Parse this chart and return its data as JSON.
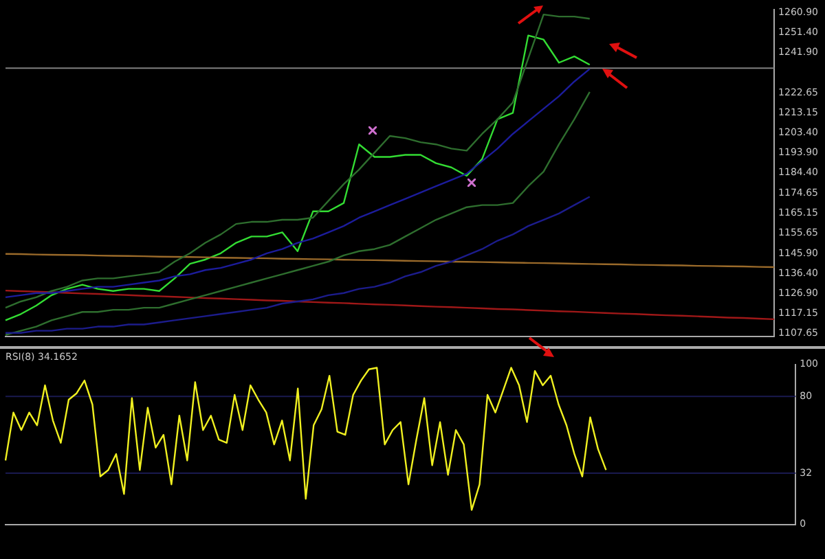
{
  "chart_data": [
    {
      "type": "line",
      "tick_labels": "y",
      "grid": false,
      "legend": false,
      "marker": "none",
      "ylim": [
        1106.4,
        1262.2
      ],
      "categories": [
        null,
        null,
        null,
        null,
        null,
        null,
        null,
        null,
        null,
        null,
        null,
        null,
        null,
        null,
        null,
        null,
        null,
        null,
        null,
        null,
        null,
        null,
        null,
        null,
        null,
        null,
        null,
        null,
        null,
        null,
        null,
        null,
        null,
        null,
        null,
        null,
        null,
        null,
        null,
        null,
        null,
        null,
        null,
        null,
        null,
        null,
        null,
        null,
        null,
        null,
        null
      ],
      "yticks": [
        {
          "value": 1107.65,
          "label": "1107.65"
        },
        {
          "value": 1117.15,
          "label": "1117.15"
        },
        {
          "value": 1126.9,
          "label": "1126.90"
        },
        {
          "value": 1136.4,
          "label": "1136.40"
        },
        {
          "value": 1145.9,
          "label": "1145.90"
        },
        {
          "value": 1155.65,
          "label": "1155.65"
        },
        {
          "value": 1165.15,
          "label": "1165.15"
        },
        {
          "value": 1174.65,
          "label": "1174.65"
        },
        {
          "value": 1184.4,
          "label": "1184.40"
        },
        {
          "value": 1193.9,
          "label": "1193.90"
        },
        {
          "value": 1203.4,
          "label": "1203.40"
        },
        {
          "value": 1213.15,
          "label": "1213.15"
        },
        {
          "value": 1222.65,
          "label": "1222.65"
        },
        {
          "value": 1241.9,
          "label": "1241.90"
        },
        {
          "value": 1251.4,
          "label": "1251.40"
        },
        {
          "value": 1260.9,
          "label": "1260.90"
        }
      ],
      "ref_lines": [
        {
          "axis": "y",
          "value": 1234.4,
          "color": "#808080"
        }
      ],
      "series": [
        {
          "color": "#1c1c8c",
          "values": [
            1108,
            1108,
            1109,
            1109,
            1110,
            1110,
            1111,
            1111,
            1112,
            1112,
            1113,
            1114,
            1115,
            1116,
            1117,
            1118,
            1119,
            1120,
            1122,
            1123,
            1124,
            1126,
            1127,
            1129,
            1130,
            1132,
            1135,
            1137,
            1140,
            1142,
            1145,
            1148,
            1152,
            1155,
            1159,
            1162,
            1165,
            1169,
            1173,
            null,
            null,
            null,
            null,
            null,
            null,
            null,
            null,
            null,
            null,
            null,
            null
          ]
        },
        {
          "color": "#1c1c9c",
          "values": [
            1125,
            1126,
            1127,
            1127,
            1128,
            1129,
            1130,
            1130,
            1131,
            1132,
            1133,
            1135,
            1136,
            1138,
            1139,
            1141,
            1143,
            1146,
            1148,
            1151,
            1153,
            1156,
            1159,
            1163,
            1166,
            1169,
            1172,
            1175,
            1178,
            1181,
            1184,
            1190,
            1196,
            1203,
            1209,
            1215,
            1221,
            1228,
            1234,
            null,
            null,
            null,
            null,
            null,
            null,
            null,
            null,
            null,
            null,
            null,
            null
          ]
        },
        {
          "color": "#2e6e2e",
          "values": [
            1107,
            1109,
            1111,
            1114,
            1116,
            1118,
            1118,
            1119,
            1119,
            1120,
            1120,
            1122,
            1124,
            1126,
            1128,
            1130,
            1132,
            1134,
            1136,
            1138,
            1140,
            1142,
            1145,
            1147,
            1148,
            1150,
            1154,
            1158,
            1162,
            1165,
            1168,
            1169,
            1169,
            1170,
            1178,
            1185,
            1198,
            1210,
            1223,
            null,
            null,
            null,
            null,
            null,
            null,
            null,
            null,
            null,
            null,
            null,
            null
          ]
        },
        {
          "color": "#2e6e2e",
          "values": [
            1120,
            1123,
            1125,
            1128,
            1130,
            1133,
            1134,
            1134,
            1135,
            1136,
            1137,
            1142,
            1146,
            1151,
            1155,
            1160,
            1161,
            1161,
            1162,
            1162,
            1163,
            1171,
            1179,
            1186,
            1194,
            1202,
            1201,
            1199,
            1198,
            1196,
            1195,
            1203,
            1210,
            1218,
            1239,
            1260,
            1259,
            1259,
            1258,
            null,
            null,
            null,
            null,
            null,
            null,
            null,
            null,
            null,
            null,
            null,
            null
          ]
        },
        {
          "color": "#9a6a2a",
          "values": [
            1145.7,
            1145.6,
            1145.4,
            1145.3,
            1145.2,
            1145.1,
            1144.9,
            1144.8,
            1144.7,
            1144.6,
            1144.4,
            1144.3,
            1144.2,
            1144.1,
            1143.9,
            1143.8,
            1143.7,
            1143.6,
            1143.4,
            1143.3,
            1143.2,
            1143.1,
            1142.9,
            1142.8,
            1142.7,
            1142.6,
            1142.4,
            1142.3,
            1142.2,
            1142.0,
            1141.9,
            1141.8,
            1141.7,
            1141.5,
            1141.4,
            1141.3,
            1141.2,
            1141.0,
            1140.9,
            1140.8,
            1140.7,
            1140.5,
            1140.4,
            1140.3,
            1140.2,
            1140.0,
            1139.9,
            1139.8,
            1139.7,
            1139.5,
            1139.4
          ]
        },
        {
          "color": "#a01818",
          "values": [
            1128.2,
            1127.9,
            1127.7,
            1127.4,
            1127.1,
            1126.8,
            1126.6,
            1126.3,
            1126.0,
            1125.7,
            1125.5,
            1125.2,
            1124.9,
            1124.6,
            1124.4,
            1124.1,
            1123.8,
            1123.5,
            1123.3,
            1123.0,
            1122.7,
            1122.4,
            1122.2,
            1121.9,
            1121.6,
            1121.4,
            1121.1,
            1120.8,
            1120.5,
            1120.3,
            1120.0,
            1119.7,
            1119.4,
            1119.2,
            1118.9,
            1118.6,
            1118.3,
            1118.1,
            1117.8,
            1117.5,
            1117.2,
            1117.0,
            1116.7,
            1116.4,
            1116.2,
            1115.9,
            1115.6,
            1115.3,
            1115.1,
            1114.8,
            1114.5
          ]
        },
        {
          "color": "#33dd33",
          "values": [
            1114,
            1117,
            1121,
            1126,
            1129,
            1131,
            1129,
            1128,
            1129,
            1129,
            1128,
            1134,
            1141,
            1143,
            1146,
            1151,
            1154,
            1154,
            1156,
            1147,
            1166,
            1166,
            1170,
            1198,
            1192,
            1192,
            1193,
            1193,
            1189,
            1187,
            1183,
            1191,
            1210,
            1213,
            1250,
            1248,
            1237,
            1240,
            1236,
            null,
            null,
            null,
            null,
            null,
            null,
            null,
            null,
            null,
            null,
            null,
            null
          ]
        }
      ]
    },
    {
      "type": "line",
      "title": "RSI(8) 34.1652",
      "tick_labels": "y",
      "grid": false,
      "legend": false,
      "marker": "none",
      "ylim": [
        0,
        100
      ],
      "yticks": [
        0,
        32,
        80,
        100
      ],
      "categories": [
        null,
        null,
        null,
        null,
        null,
        null,
        null,
        null,
        null,
        null,
        null,
        null,
        null,
        null,
        null,
        null,
        null,
        null,
        null,
        null,
        null,
        null,
        null,
        null,
        null,
        null,
        null,
        null,
        null,
        null,
        null,
        null,
        null,
        null,
        null,
        null,
        null,
        null,
        null,
        null,
        null,
        null,
        null,
        null,
        null,
        null,
        null,
        null,
        null,
        null,
        null,
        null,
        null,
        null,
        null,
        null,
        null,
        null,
        null,
        null,
        null,
        null,
        null,
        null,
        null,
        null,
        null,
        null,
        null,
        null,
        null,
        null,
        null,
        null,
        null,
        null,
        null,
        null,
        null,
        null,
        null,
        null,
        null,
        null,
        null,
        null,
        null,
        null,
        null,
        null,
        null,
        null,
        null,
        null,
        null,
        null,
        null,
        null,
        null,
        null,
        null
      ],
      "ref_lines": [
        {
          "axis": "y",
          "value": 80,
          "color": "#1a1a50"
        },
        {
          "axis": "y",
          "value": 32,
          "color": "#1a1a50"
        }
      ],
      "series": [
        {
          "color": "#f0f020",
          "values": [
            40,
            70,
            59,
            70,
            62,
            87,
            65,
            51,
            78,
            82,
            90,
            75,
            30,
            34,
            44,
            19,
            79,
            34,
            73,
            48,
            56,
            25,
            68,
            40,
            89,
            59,
            68,
            53,
            51,
            81,
            59,
            87,
            78,
            70,
            50,
            65,
            40,
            85,
            16,
            62,
            72,
            93,
            58,
            56,
            81,
            90,
            97,
            98,
            50,
            59,
            64,
            25,
            53,
            79,
            37,
            64,
            31,
            59,
            50,
            9,
            25,
            81,
            70,
            84,
            98,
            87,
            64,
            96,
            87,
            93,
            75,
            62,
            44,
            30,
            67,
            47,
            34,
            null,
            null,
            null,
            null,
            null,
            null,
            null,
            null,
            null,
            null,
            null,
            null,
            null,
            null,
            null,
            null,
            null,
            null,
            null,
            null,
            null,
            null,
            null,
            null
          ]
        }
      ]
    }
  ]
}
